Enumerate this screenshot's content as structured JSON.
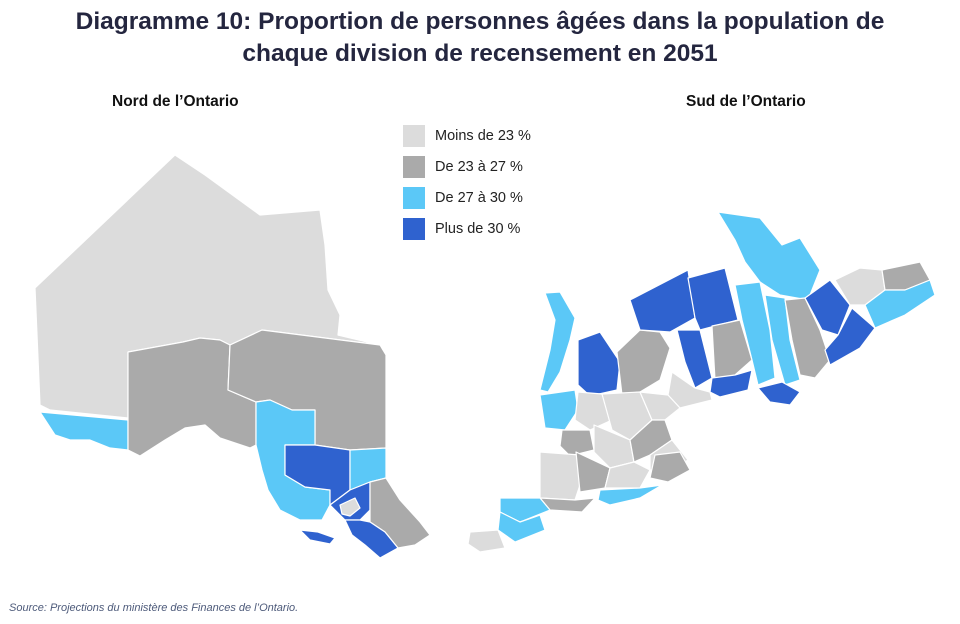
{
  "title": {
    "line1": "Diagramme 10: Proportion de personnes âgées dans la population de",
    "line2": "chaque division de recensement en 2051"
  },
  "maps": {
    "north_label": "Nord de l’Ontario",
    "south_label": "Sud de l’Ontario"
  },
  "legend": [
    {
      "label": "Moins de 23 %",
      "color": "#dcdcdc"
    },
    {
      "label": "De 23 à 27 %",
      "color": "#aaaaaa"
    },
    {
      "label": "De 27 à 30 %",
      "color": "#5bc8f7"
    },
    {
      "label": "Plus de 30 %",
      "color": "#2f62cf"
    }
  ],
  "source": "Source: Projections du ministère des Finances de l’Ontario."
}
